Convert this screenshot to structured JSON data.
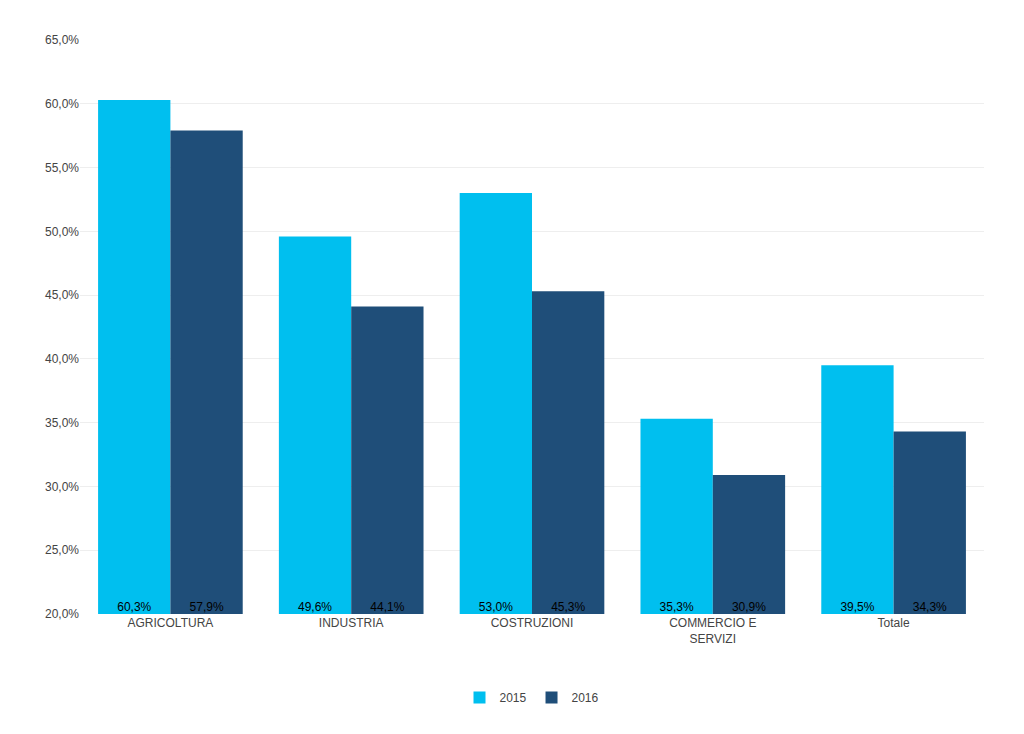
{
  "chart_data": {
    "type": "bar",
    "categories": [
      "AGRICOLTURA",
      "INDUSTRIA",
      "COSTRUZIONI",
      "COMMERCIO E\nSERVIZI",
      "Totale"
    ],
    "series": [
      {
        "name": "2015",
        "color": "#00BFEF",
        "values": [
          60.3,
          49.6,
          53.0,
          35.3,
          39.5
        ],
        "value_labels": [
          "60,3%",
          "49,6%",
          "53,0%",
          "35,3%",
          "39,5%"
        ]
      },
      {
        "name": "2016",
        "color": "#1F4E79",
        "values": [
          57.9,
          44.1,
          45.3,
          30.9,
          34.3
        ],
        "value_labels": [
          "57,9%",
          "44,1%",
          "45,3%",
          "30,9%",
          "34,3%"
        ]
      }
    ],
    "ylim": [
      20.0,
      65.0
    ],
    "yticks": [
      {
        "value": 20.0,
        "label": "20,0%"
      },
      {
        "value": 25.0,
        "label": "25,0%"
      },
      {
        "value": 30.0,
        "label": "30,0%"
      },
      {
        "value": 35.0,
        "label": "35,0%"
      },
      {
        "value": 40.0,
        "label": "40,0%"
      },
      {
        "value": 45.0,
        "label": "45,0%"
      },
      {
        "value": 50.0,
        "label": "50,0%"
      },
      {
        "value": 55.0,
        "label": "55,0%"
      },
      {
        "value": 60.0,
        "label": "60,0%"
      },
      {
        "value": 65.0,
        "label": "65,0%"
      }
    ],
    "grid": true,
    "legend": "bottom",
    "data_labels": true
  }
}
